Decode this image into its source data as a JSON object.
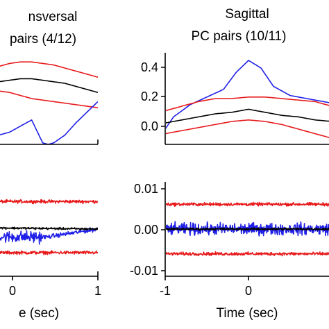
{
  "chart_data": [
    {
      "id": "left-top",
      "type": "line",
      "title_lines": [
        "nsversal",
        "pairs (4/12)"
      ],
      "xlim": [
        -1,
        1
      ],
      "ylim": [
        -0.1,
        0.5
      ],
      "xticks": [],
      "yticks": [],
      "series": [
        {
          "color": "#e8191b",
          "x": [
            -1,
            -0.8,
            -0.6,
            -0.4,
            -0.2,
            0,
            0.2,
            0.4,
            0.6,
            0.8,
            1
          ],
          "y": [
            0.39,
            0.41,
            0.43,
            0.44,
            0.44,
            0.43,
            0.42,
            0.4,
            0.38,
            0.36,
            0.34
          ]
        },
        {
          "color": "#000000",
          "x": [
            -1,
            -0.8,
            -0.6,
            -0.4,
            -0.2,
            0,
            0.2,
            0.4,
            0.6,
            0.8,
            1
          ],
          "y": [
            0.3,
            0.31,
            0.32,
            0.33,
            0.33,
            0.32,
            0.31,
            0.3,
            0.28,
            0.26,
            0.24
          ]
        },
        {
          "color": "#e8191b",
          "x": [
            -1,
            -0.8,
            -0.6,
            -0.4,
            -0.2,
            0,
            0.2,
            0.4,
            0.6,
            0.8,
            1
          ],
          "y": [
            0.24,
            0.25,
            0.24,
            0.22,
            0.2,
            0.19,
            0.18,
            0.17,
            0.16,
            0.15,
            0.14
          ]
        },
        {
          "color": "#1f1fe8",
          "x": [
            -1,
            -0.8,
            -0.6,
            -0.4,
            -0.2,
            0,
            0.1,
            0.2,
            0.4,
            0.6,
            0.8,
            1
          ],
          "y": [
            -0.02,
            -0.04,
            -0.02,
            0.02,
            0.06,
            -0.09,
            -0.1,
            -0.09,
            -0.04,
            0.04,
            0.11,
            0.18
          ]
        }
      ]
    },
    {
      "id": "right-top",
      "type": "line",
      "title_lines": [
        "Sagittal",
        "PC pairs (10/11)"
      ],
      "xlim": [
        -1,
        1
      ],
      "ylim": [
        -0.1,
        0.5
      ],
      "xticks": [],
      "yticks": [
        "0.4",
        "0.2",
        "0.0"
      ],
      "ytick_values": [
        0.4,
        0.2,
        0.0
      ],
      "series": [
        {
          "color": "#1f1fe8",
          "x": [
            -1,
            -0.9,
            -0.7,
            -0.5,
            -0.3,
            -0.15,
            0,
            0.15,
            0.3,
            0.5,
            0.7,
            0.9,
            1
          ],
          "y": [
            0.0,
            0.08,
            0.16,
            0.21,
            0.26,
            0.37,
            0.45,
            0.4,
            0.28,
            0.22,
            0.2,
            0.18,
            0.17
          ]
        },
        {
          "color": "#e8191b",
          "x": [
            -1,
            -0.8,
            -0.6,
            -0.4,
            -0.2,
            0,
            0.2,
            0.4,
            0.6,
            0.8,
            1
          ],
          "y": [
            0.12,
            0.15,
            0.18,
            0.2,
            0.2,
            0.21,
            0.21,
            0.2,
            0.19,
            0.18,
            0.15
          ]
        },
        {
          "color": "#000000",
          "x": [
            -1,
            -0.8,
            -0.6,
            -0.4,
            -0.2,
            0,
            0.2,
            0.4,
            0.6,
            0.8,
            1
          ],
          "y": [
            0.04,
            0.06,
            0.08,
            0.1,
            0.11,
            0.13,
            0.11,
            0.09,
            0.08,
            0.06,
            0.05
          ]
        },
        {
          "color": "#e8191b",
          "x": [
            -1,
            -0.8,
            -0.6,
            -0.4,
            -0.2,
            0,
            0.2,
            0.4,
            0.6,
            0.8,
            1
          ],
          "y": [
            -0.03,
            -0.01,
            0.01,
            0.03,
            0.05,
            0.06,
            0.05,
            0.03,
            0.0,
            -0.03,
            -0.06
          ]
        }
      ]
    },
    {
      "id": "left-bottom",
      "type": "line",
      "title_lines": [],
      "xlim": [
        -1,
        1
      ],
      "ylim": [
        -0.012,
        0.012
      ],
      "xticks": [
        "0",
        "1"
      ],
      "xtick_values": [
        0,
        1
      ],
      "xlabel": "e (sec)",
      "yticks": [],
      "series": [
        {
          "color": "#e8191b",
          "noise": 0.0006,
          "x": [
            -1,
            1
          ],
          "y": [
            0.007,
            0.007
          ]
        },
        {
          "color": "#e8191b",
          "noise": 0.0006,
          "x": [
            -1,
            1
          ],
          "y": [
            -0.006,
            -0.006
          ]
        },
        {
          "color": "#1f1fe8",
          "noise": 0.0022,
          "x": [
            -1,
            -0.4,
            0.4,
            1
          ],
          "y": [
            -0.001,
            -0.002,
            -0.002,
            0.0
          ],
          "noise_x": [
            -1,
            0.35
          ]
        },
        {
          "color": "#000000",
          "noise": 0.0004,
          "x": [
            -1,
            1
          ],
          "y": [
            0.0005,
            0.0
          ]
        }
      ]
    },
    {
      "id": "right-bottom",
      "type": "line",
      "title_lines": [],
      "xlim": [
        -1,
        1
      ],
      "ylim": [
        -0.012,
        0.012
      ],
      "xticks": [
        "-1",
        "0"
      ],
      "xtick_values": [
        -1,
        0
      ],
      "xlabel": "Time (sec)",
      "yticks": [
        "0.01",
        "0.00",
        "-0.01"
      ],
      "ytick_values": [
        0.01,
        0.0,
        -0.01
      ],
      "series": [
        {
          "color": "#e8191b",
          "noise": 0.0006,
          "x": [
            -1,
            1
          ],
          "y": [
            0.0063,
            0.0063
          ]
        },
        {
          "color": "#e8191b",
          "noise": 0.0006,
          "x": [
            -1,
            1
          ],
          "y": [
            -0.0063,
            -0.0063
          ]
        },
        {
          "color": "#1f1fe8",
          "noise": 0.0022,
          "x": [
            -1,
            1
          ],
          "y": [
            0.0,
            0.0
          ]
        },
        {
          "color": "#000000",
          "noise": 0.0004,
          "x": [
            -1,
            1
          ],
          "y": [
            0.0,
            0.0
          ]
        }
      ]
    }
  ]
}
